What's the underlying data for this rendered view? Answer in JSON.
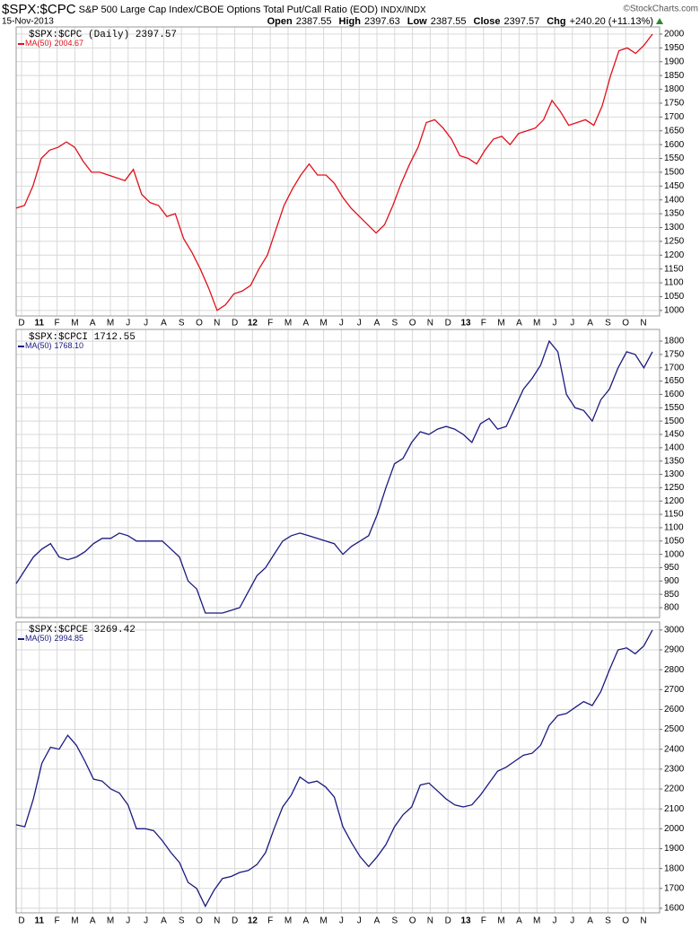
{
  "header": {
    "symbol": "$SPX:$CPC",
    "description": "S&P 500 Large Cap Index/CBOE Options Total Put/Call Ratio (EOD)",
    "exchange": "INDX/INDX",
    "date": "15-Nov-2013",
    "watermark": "©StockCharts.com",
    "quote": [
      {
        "label": "Open",
        "value": "2387.55"
      },
      {
        "label": "High",
        "value": "2397.63"
      },
      {
        "label": "Low",
        "value": "2387.55"
      },
      {
        "label": "Close",
        "value": "2397.57"
      },
      {
        "label": "Chg",
        "value": "+240.20 (+11.13%)"
      }
    ]
  },
  "chart_data": [
    {
      "type": "line",
      "label": "$SPX:$CPC (Daily) 2397.57",
      "x_labels": [
        "D",
        "11",
        "F",
        "M",
        "A",
        "M",
        "J",
        "J",
        "A",
        "S",
        "O",
        "N",
        "D",
        "12",
        "F",
        "M",
        "A",
        "M",
        "J",
        "J",
        "A",
        "S",
        "O",
        "N",
        "D",
        "13",
        "F",
        "M",
        "A",
        "M",
        "J",
        "J",
        "A",
        "S",
        "O",
        "N"
      ],
      "ylim": [
        980,
        2026
      ],
      "yticks": [
        1000,
        1050,
        1100,
        1150,
        1200,
        1250,
        1300,
        1350,
        1400,
        1450,
        1500,
        1550,
        1600,
        1650,
        1700,
        1750,
        1800,
        1850,
        1900,
        1950,
        2000
      ],
      "grid": true,
      "series": [
        {
          "name": "MA(50)",
          "value_label": "2004.67",
          "color": "#e0101a",
          "values": [
            1370,
            1380,
            1450,
            1550,
            1580,
            1590,
            1610,
            1590,
            1540,
            1500,
            1500,
            1490,
            1480,
            1470,
            1510,
            1420,
            1390,
            1380,
            1340,
            1350,
            1260,
            1210,
            1150,
            1080,
            1000,
            1020,
            1060,
            1070,
            1090,
            1150,
            1200,
            1290,
            1380,
            1440,
            1490,
            1530,
            1490,
            1490,
            1460,
            1410,
            1370,
            1340,
            1310,
            1280,
            1310,
            1380,
            1460,
            1530,
            1590,
            1680,
            1690,
            1660,
            1620,
            1560,
            1550,
            1530,
            1580,
            1620,
            1630,
            1600,
            1640,
            1650,
            1660,
            1690,
            1760,
            1720,
            1670,
            1680,
            1690,
            1670,
            1740,
            1850,
            1940,
            1950,
            1930,
            1960,
            2000
          ]
        }
      ]
    },
    {
      "type": "line",
      "label": "$SPX:$CPCI 1712.55",
      "ylim": [
        763,
        1844
      ],
      "yticks": [
        800,
        850,
        900,
        950,
        1000,
        1050,
        1100,
        1150,
        1200,
        1250,
        1300,
        1350,
        1400,
        1450,
        1500,
        1550,
        1600,
        1650,
        1700,
        1750,
        1800
      ],
      "grid": true,
      "series": [
        {
          "name": "MA(50)",
          "value_label": "1768.10",
          "color": "#1a1a80",
          "values": [
            890,
            940,
            990,
            1020,
            1040,
            990,
            980,
            990,
            1010,
            1040,
            1060,
            1060,
            1080,
            1070,
            1050,
            1050,
            1050,
            1050,
            1020,
            990,
            900,
            870,
            780,
            780,
            780,
            790,
            800,
            860,
            920,
            950,
            1000,
            1050,
            1070,
            1080,
            1070,
            1060,
            1050,
            1040,
            1000,
            1030,
            1050,
            1070,
            1150,
            1250,
            1340,
            1360,
            1420,
            1460,
            1450,
            1470,
            1480,
            1470,
            1450,
            1420,
            1490,
            1510,
            1470,
            1480,
            1550,
            1620,
            1660,
            1710,
            1800,
            1760,
            1600,
            1550,
            1540,
            1500,
            1580,
            1620,
            1700,
            1760,
            1750,
            1700,
            1760
          ]
        }
      ]
    },
    {
      "type": "line",
      "label": "$SPX:$CPCE 3269.42",
      "x_labels": [
        "D",
        "11",
        "F",
        "M",
        "A",
        "M",
        "J",
        "J",
        "A",
        "S",
        "O",
        "N",
        "D",
        "12",
        "F",
        "M",
        "A",
        "M",
        "J",
        "J",
        "A",
        "S",
        "O",
        "N",
        "D",
        "13",
        "F",
        "M",
        "A",
        "M",
        "J",
        "J",
        "A",
        "S",
        "O",
        "N"
      ],
      "ylim": [
        1577,
        3040
      ],
      "yticks": [
        1600,
        1700,
        1800,
        1900,
        2000,
        2100,
        2200,
        2300,
        2400,
        2500,
        2600,
        2700,
        2800,
        2900,
        3000
      ],
      "grid": true,
      "series": [
        {
          "name": "MA(50)",
          "value_label": "2994.85",
          "color": "#1a1a80",
          "values": [
            2020,
            2010,
            2150,
            2330,
            2410,
            2400,
            2470,
            2420,
            2340,
            2250,
            2240,
            2200,
            2180,
            2120,
            2000,
            2000,
            1990,
            1940,
            1880,
            1830,
            1730,
            1700,
            1610,
            1690,
            1750,
            1760,
            1780,
            1790,
            1820,
            1880,
            2000,
            2110,
            2170,
            2260,
            2230,
            2240,
            2210,
            2160,
            2010,
            1930,
            1860,
            1810,
            1860,
            1920,
            2010,
            2070,
            2110,
            2220,
            2230,
            2190,
            2150,
            2120,
            2110,
            2120,
            2170,
            2230,
            2290,
            2310,
            2340,
            2370,
            2380,
            2420,
            2520,
            2570,
            2580,
            2610,
            2640,
            2620,
            2690,
            2800,
            2900,
            2910,
            2880,
            2920,
            3000
          ]
        }
      ]
    }
  ]
}
